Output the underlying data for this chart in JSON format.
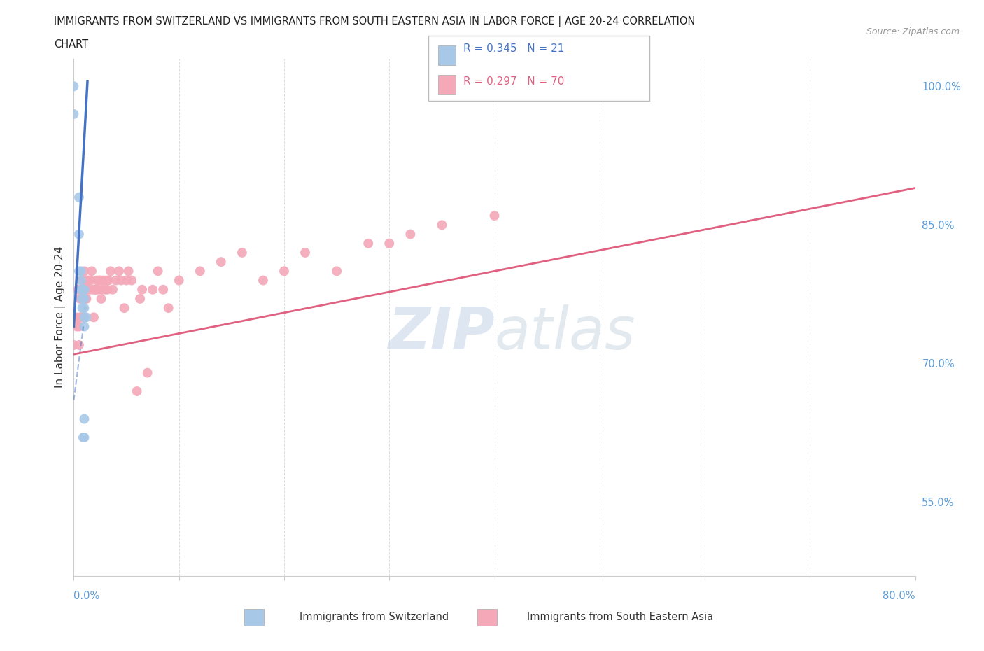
{
  "title_line1": "IMMIGRANTS FROM SWITZERLAND VS IMMIGRANTS FROM SOUTH EASTERN ASIA IN LABOR FORCE | AGE 20-24 CORRELATION",
  "title_line2": "CHART",
  "source": "Source: ZipAtlas.com",
  "ylabel": "In Labor Force | Age 20-24",
  "xlim": [
    0.0,
    0.8
  ],
  "ylim": [
    0.47,
    1.03
  ],
  "x_ticks": [
    0.0,
    0.1,
    0.2,
    0.3,
    0.4,
    0.5,
    0.6,
    0.7,
    0.8
  ],
  "y_ticks": [
    0.55,
    0.7,
    0.85,
    1.0
  ],
  "y_tick_labels_right": [
    "55.0%",
    "70.0%",
    "85.0%",
    "100.0%"
  ],
  "switzerland_R": 0.345,
  "switzerland_N": 21,
  "sea_R": 0.297,
  "sea_N": 70,
  "switzerland_color": "#a8c8e8",
  "sea_color": "#f4a8b8",
  "switzerland_trend_color": "#4472c4",
  "sea_trend_color": "#e06080",
  "watermark_color": "#c8d8e8",
  "switzerland_x": [
    0.0,
    0.0,
    0.005,
    0.005,
    0.005,
    0.007,
    0.007,
    0.007,
    0.008,
    0.008,
    0.008,
    0.009,
    0.01,
    0.01,
    0.01,
    0.01,
    0.01,
    0.01,
    0.01,
    0.01,
    0.012
  ],
  "switzerland_y": [
    1.0,
    0.97,
    0.88,
    0.84,
    0.8,
    0.8,
    0.79,
    0.78,
    0.78,
    0.77,
    0.76,
    0.62,
    0.78,
    0.78,
    0.77,
    0.76,
    0.75,
    0.74,
    0.64,
    0.62,
    0.75
  ],
  "sea_x": [
    0.0,
    0.002,
    0.003,
    0.004,
    0.005,
    0.005,
    0.006,
    0.006,
    0.007,
    0.007,
    0.008,
    0.008,
    0.009,
    0.01,
    0.01,
    0.01,
    0.011,
    0.011,
    0.012,
    0.012,
    0.013,
    0.014,
    0.015,
    0.016,
    0.017,
    0.018,
    0.019,
    0.02,
    0.021,
    0.022,
    0.023,
    0.024,
    0.025,
    0.026,
    0.027,
    0.028,
    0.03,
    0.031,
    0.032,
    0.033,
    0.035,
    0.037,
    0.04,
    0.043,
    0.045,
    0.048,
    0.05,
    0.052,
    0.055,
    0.06,
    0.063,
    0.065,
    0.07,
    0.075,
    0.08,
    0.085,
    0.09,
    0.1,
    0.12,
    0.14,
    0.16,
    0.18,
    0.2,
    0.22,
    0.25,
    0.28,
    0.3,
    0.32,
    0.35,
    0.4
  ],
  "sea_y": [
    0.72,
    0.75,
    0.74,
    0.78,
    0.74,
    0.72,
    0.77,
    0.75,
    0.78,
    0.75,
    0.79,
    0.77,
    0.78,
    0.8,
    0.78,
    0.75,
    0.79,
    0.77,
    0.79,
    0.77,
    0.78,
    0.79,
    0.78,
    0.79,
    0.8,
    0.78,
    0.75,
    0.78,
    0.78,
    0.79,
    0.78,
    0.79,
    0.79,
    0.77,
    0.78,
    0.79,
    0.78,
    0.79,
    0.78,
    0.79,
    0.8,
    0.78,
    0.79,
    0.8,
    0.79,
    0.76,
    0.79,
    0.8,
    0.79,
    0.67,
    0.77,
    0.78,
    0.69,
    0.78,
    0.8,
    0.78,
    0.76,
    0.79,
    0.8,
    0.81,
    0.82,
    0.79,
    0.8,
    0.82,
    0.8,
    0.83,
    0.83,
    0.84,
    0.85,
    0.86
  ],
  "sw_trend_x": [
    0.0,
    0.013
  ],
  "sw_trend_y": [
    0.74,
    1.005
  ],
  "sea_trend_x": [
    0.0,
    0.8
  ],
  "sea_trend_y": [
    0.71,
    0.89
  ]
}
